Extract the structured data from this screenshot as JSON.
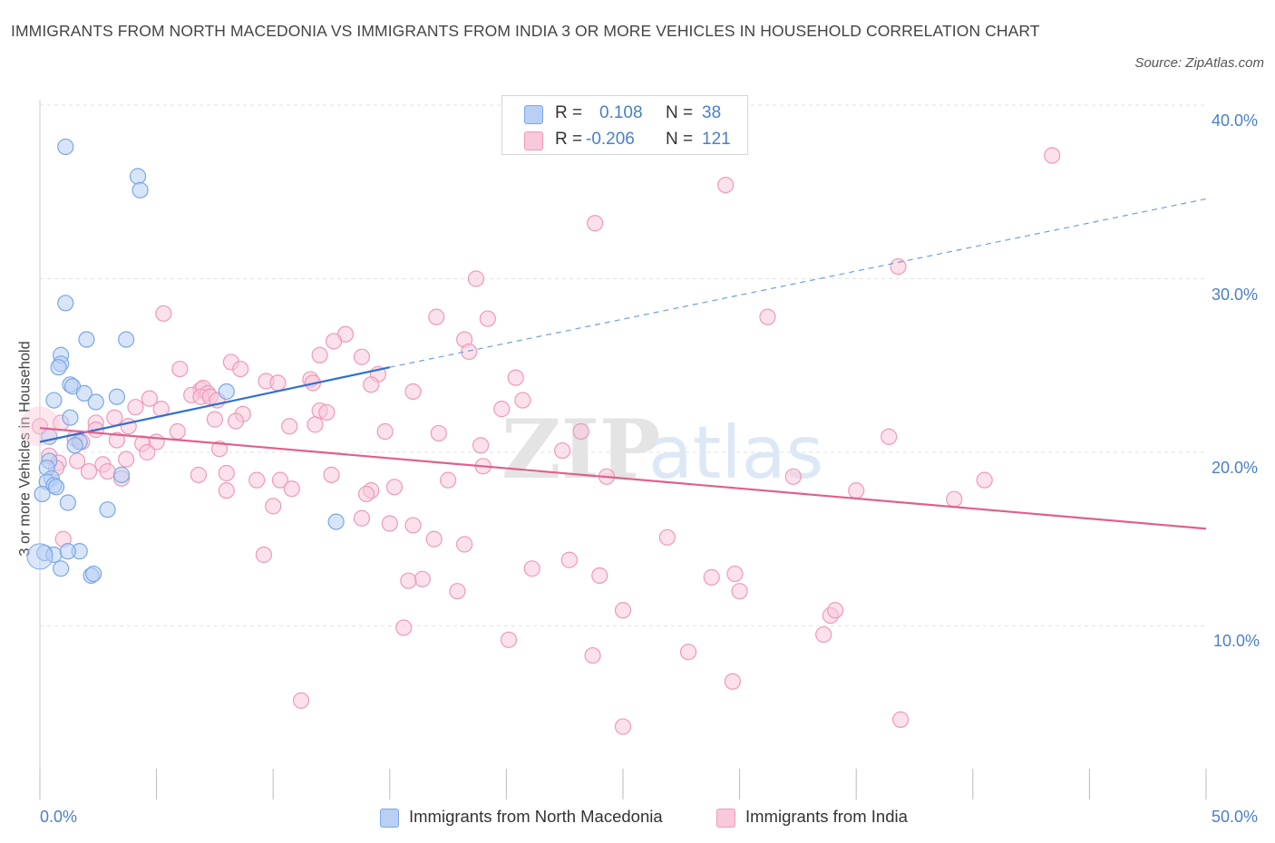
{
  "chart_data": {
    "type": "scatter",
    "title": "IMMIGRANTS FROM NORTH MACEDONIA VS IMMIGRANTS FROM INDIA 3 OR MORE VEHICLES IN HOUSEHOLD CORRELATION CHART",
    "source": "Source: ZipAtlas.com",
    "xlabel": "",
    "ylabel": "3 or more Vehicles in Household",
    "xlim": [
      0,
      50
    ],
    "ylim": [
      0,
      40
    ],
    "x_ticks": [
      "0.0%",
      "50.0%"
    ],
    "y_ticks": [
      "10.0%",
      "20.0%",
      "30.0%",
      "40.0%"
    ],
    "y_tick_values": [
      10,
      20,
      30,
      40
    ],
    "grid": true,
    "watermark": "ZIPatlas",
    "legend_stats": [
      {
        "r_label": "R =",
        "r_value": "0.108",
        "n_label": "N =",
        "n_value": "38"
      },
      {
        "r_label": "R =",
        "r_value": "-0.206",
        "n_label": "N =",
        "n_value": "121"
      }
    ],
    "series": [
      {
        "name": "Immigrants from North Macedonia",
        "color": "#7aa7e8",
        "fill": "#b8d0f4",
        "trend": {
          "x0": 0,
          "y0": 20.6,
          "x1": 15,
          "y1": 24.9,
          "x_dash_end": 50,
          "y_dash_end": 34.6,
          "color": "#2e6fd1"
        },
        "points": [
          [
            1.1,
            37.6
          ],
          [
            4.2,
            35.9
          ],
          [
            4.3,
            35.1
          ],
          [
            1.1,
            28.6
          ],
          [
            2.0,
            26.5
          ],
          [
            3.7,
            26.5
          ],
          [
            0.9,
            25.6
          ],
          [
            0.9,
            25.1
          ],
          [
            0.8,
            24.9
          ],
          [
            1.3,
            23.9
          ],
          [
            1.4,
            23.8
          ],
          [
            1.9,
            23.4
          ],
          [
            8.0,
            23.5
          ],
          [
            3.3,
            23.2
          ],
          [
            0.6,
            23.0
          ],
          [
            2.4,
            22.9
          ],
          [
            1.3,
            22.0
          ],
          [
            0.4,
            20.9
          ],
          [
            1.7,
            20.6
          ],
          [
            1.5,
            20.4
          ],
          [
            0.4,
            19.5
          ],
          [
            0.3,
            19.1
          ],
          [
            0.5,
            18.5
          ],
          [
            0.3,
            18.3
          ],
          [
            0.6,
            18.1
          ],
          [
            0.7,
            18.0
          ],
          [
            0.1,
            17.6
          ],
          [
            1.2,
            17.1
          ],
          [
            2.9,
            16.7
          ],
          [
            12.7,
            16.0
          ],
          [
            3.5,
            18.7
          ],
          [
            0.2,
            14.2
          ],
          [
            0.6,
            14.1
          ],
          [
            1.7,
            14.3
          ],
          [
            1.2,
            14.3
          ],
          [
            0.9,
            13.3
          ],
          [
            2.2,
            12.9
          ],
          [
            2.3,
            13.0
          ]
        ]
      },
      {
        "name": "Immigrants from India",
        "color": "#f099b8",
        "fill": "#f8c9da",
        "trend": {
          "x0": 0,
          "y0": 21.4,
          "x1": 50,
          "y1": 15.6,
          "color": "#e0608a"
        },
        "points": [
          [
            43.4,
            37.1
          ],
          [
            29.4,
            35.4
          ],
          [
            23.8,
            33.2
          ],
          [
            36.8,
            30.7
          ],
          [
            18.7,
            30.0
          ],
          [
            5.3,
            28.0
          ],
          [
            17.0,
            27.8
          ],
          [
            19.2,
            27.7
          ],
          [
            31.2,
            27.8
          ],
          [
            13.1,
            26.8
          ],
          [
            12.6,
            26.4
          ],
          [
            18.2,
            26.5
          ],
          [
            18.4,
            25.8
          ],
          [
            12.0,
            25.6
          ],
          [
            13.8,
            25.5
          ],
          [
            8.2,
            25.2
          ],
          [
            8.6,
            24.8
          ],
          [
            6.0,
            24.8
          ],
          [
            14.5,
            24.5
          ],
          [
            20.4,
            24.3
          ],
          [
            9.7,
            24.1
          ],
          [
            10.2,
            24.0
          ],
          [
            11.6,
            24.2
          ],
          [
            11.7,
            24.0
          ],
          [
            14.2,
            23.9
          ],
          [
            6.9,
            23.6
          ],
          [
            7.0,
            23.7
          ],
          [
            16.0,
            23.5
          ],
          [
            6.5,
            23.3
          ],
          [
            7.2,
            23.4
          ],
          [
            6.9,
            23.2
          ],
          [
            7.3,
            23.2
          ],
          [
            4.7,
            23.1
          ],
          [
            7.6,
            23.0
          ],
          [
            20.7,
            23.0
          ],
          [
            4.1,
            22.6
          ],
          [
            5.2,
            22.5
          ],
          [
            12.0,
            22.4
          ],
          [
            12.3,
            22.3
          ],
          [
            19.8,
            22.5
          ],
          [
            8.7,
            22.2
          ],
          [
            3.2,
            22.0
          ],
          [
            7.5,
            21.9
          ],
          [
            8.4,
            21.8
          ],
          [
            2.4,
            21.7
          ],
          [
            10.7,
            21.5
          ],
          [
            11.8,
            21.6
          ],
          [
            0.9,
            21.7
          ],
          [
            3.8,
            21.5
          ],
          [
            5.9,
            21.2
          ],
          [
            14.8,
            21.2
          ],
          [
            17.1,
            21.1
          ],
          [
            23.2,
            21.2
          ],
          [
            0.0,
            21.5
          ],
          [
            36.4,
            20.9
          ],
          [
            2.4,
            21.3
          ],
          [
            1.5,
            20.8
          ],
          [
            1.8,
            20.6
          ],
          [
            3.3,
            20.7
          ],
          [
            5.0,
            20.6
          ],
          [
            4.4,
            20.5
          ],
          [
            18.9,
            20.4
          ],
          [
            7.7,
            20.2
          ],
          [
            22.4,
            20.1
          ],
          [
            4.6,
            20.0
          ],
          [
            0.4,
            19.8
          ],
          [
            0.8,
            19.4
          ],
          [
            0.7,
            19.1
          ],
          [
            1.6,
            19.5
          ],
          [
            2.7,
            19.3
          ],
          [
            3.7,
            19.6
          ],
          [
            19.0,
            19.2
          ],
          [
            2.9,
            18.9
          ],
          [
            2.1,
            18.9
          ],
          [
            6.8,
            18.7
          ],
          [
            8.0,
            18.8
          ],
          [
            12.5,
            18.7
          ],
          [
            9.3,
            18.4
          ],
          [
            10.3,
            18.4
          ],
          [
            17.5,
            18.4
          ],
          [
            24.3,
            18.6
          ],
          [
            32.3,
            18.6
          ],
          [
            40.5,
            18.4
          ],
          [
            3.5,
            18.5
          ],
          [
            8.0,
            17.8
          ],
          [
            10.8,
            17.9
          ],
          [
            14.2,
            17.8
          ],
          [
            15.2,
            18.0
          ],
          [
            14.0,
            17.6
          ],
          [
            35.0,
            17.8
          ],
          [
            39.2,
            17.3
          ],
          [
            10.0,
            16.9
          ],
          [
            13.8,
            16.2
          ],
          [
            15.0,
            15.9
          ],
          [
            16.0,
            15.8
          ],
          [
            16.9,
            15.0
          ],
          [
            18.2,
            14.7
          ],
          [
            26.9,
            15.1
          ],
          [
            9.6,
            14.1
          ],
          [
            22.7,
            13.8
          ],
          [
            21.1,
            13.3
          ],
          [
            28.8,
            12.8
          ],
          [
            29.8,
            13.0
          ],
          [
            24.0,
            12.9
          ],
          [
            16.4,
            12.7
          ],
          [
            15.8,
            12.6
          ],
          [
            17.9,
            12.0
          ],
          [
            30.0,
            12.0
          ],
          [
            25.0,
            10.9
          ],
          [
            33.9,
            10.6
          ],
          [
            34.1,
            10.9
          ],
          [
            15.6,
            9.9
          ],
          [
            33.6,
            9.5
          ],
          [
            20.1,
            9.2
          ],
          [
            23.7,
            8.3
          ],
          [
            27.8,
            8.5
          ],
          [
            29.7,
            6.8
          ],
          [
            11.2,
            5.7
          ],
          [
            36.9,
            4.6
          ],
          [
            25.0,
            4.2
          ],
          [
            1.0,
            15.0
          ]
        ]
      }
    ]
  }
}
